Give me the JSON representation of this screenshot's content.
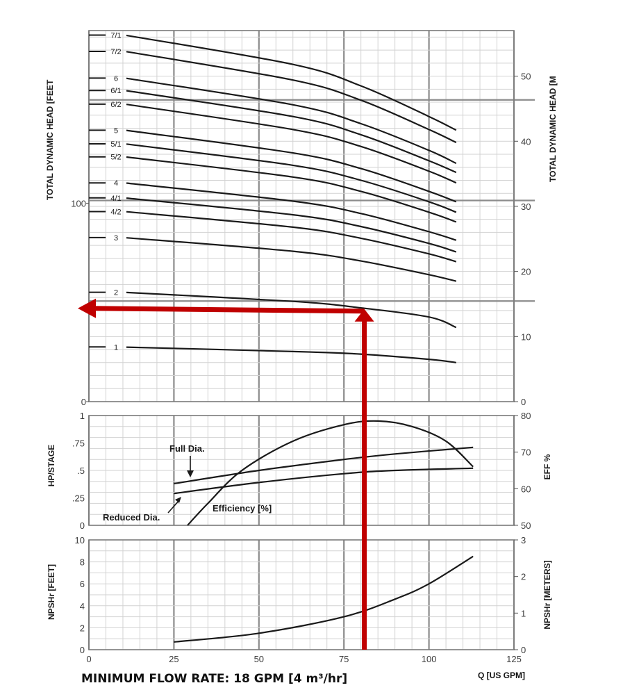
{
  "chart_data": [
    {
      "type": "line",
      "panel": "head",
      "ylabel_left": "TOTAL DYNAMIC HEAD [FEET",
      "ylabel_right": "TOTAL DYNAMIC HEAD [M",
      "left_ticks": [
        {
          "value": 0,
          "label": "0"
        },
        {
          "value": 100,
          "label": "100"
        }
      ],
      "right_ticks": [
        {
          "value": 0,
          "label": "0"
        },
        {
          "value": 10,
          "label": "10"
        },
        {
          "value": 20,
          "label": "20"
        },
        {
          "value": 30,
          "label": "30"
        },
        {
          "value": 40,
          "label": "40"
        },
        {
          "value": 50,
          "label": "50"
        }
      ],
      "xlim": [
        0,
        125
      ],
      "ylim_m": [
        0,
        57
      ],
      "series": [
        {
          "name": "7/1",
          "values": [
            [
              0,
              56.3
            ],
            [
              60,
              51.8
            ],
            [
              80,
              48.5
            ],
            [
              100,
              43.8
            ],
            [
              108,
              41.7
            ]
          ]
        },
        {
          "name": "7/2",
          "values": [
            [
              0,
              53.8
            ],
            [
              60,
              49.4
            ],
            [
              80,
              46.3
            ],
            [
              100,
              41.8
            ],
            [
              108,
              39.8
            ]
          ]
        },
        {
          "name": "6",
          "values": [
            [
              0,
              49.7
            ],
            [
              60,
              45.6
            ],
            [
              80,
              42.7
            ],
            [
              100,
              38.6
            ],
            [
              108,
              36.6
            ]
          ]
        },
        {
          "name": "6/1",
          "values": [
            [
              0,
              47.8
            ],
            [
              60,
              43.8
            ],
            [
              80,
              41.0
            ],
            [
              100,
              37.0
            ],
            [
              108,
              35.2
            ]
          ]
        },
        {
          "name": "6/2",
          "values": [
            [
              0,
              45.7
            ],
            [
              60,
              41.8
            ],
            [
              80,
              39.2
            ],
            [
              100,
              35.4
            ],
            [
              108,
              33.6
            ]
          ]
        },
        {
          "name": "5",
          "values": [
            [
              0,
              41.7
            ],
            [
              60,
              38.2
            ],
            [
              80,
              35.8
            ],
            [
              100,
              32.3
            ],
            [
              108,
              30.7
            ]
          ]
        },
        {
          "name": "5/1",
          "values": [
            [
              0,
              39.6
            ],
            [
              60,
              36.3
            ],
            [
              80,
              34.0
            ],
            [
              100,
              30.7
            ],
            [
              108,
              29.1
            ]
          ]
        },
        {
          "name": "5/2",
          "values": [
            [
              0,
              37.6
            ],
            [
              60,
              34.5
            ],
            [
              80,
              32.3
            ],
            [
              100,
              29.1
            ],
            [
              108,
              27.6
            ]
          ]
        },
        {
          "name": "4",
          "values": [
            [
              0,
              33.6
            ],
            [
              60,
              30.8
            ],
            [
              80,
              28.9
            ],
            [
              100,
              26.1
            ],
            [
              108,
              24.8
            ]
          ]
        },
        {
          "name": "4/1",
          "values": [
            [
              0,
              31.3
            ],
            [
              60,
              28.7
            ],
            [
              80,
              26.9
            ],
            [
              100,
              24.3
            ],
            [
              108,
              23.0
            ]
          ]
        },
        {
          "name": "4/2",
          "values": [
            [
              0,
              29.2
            ],
            [
              60,
              26.8
            ],
            [
              80,
              25.1
            ],
            [
              100,
              22.7
            ],
            [
              108,
              21.5
            ]
          ]
        },
        {
          "name": "3",
          "values": [
            [
              0,
              25.2
            ],
            [
              60,
              23.1
            ],
            [
              80,
              21.6
            ],
            [
              100,
              19.5
            ],
            [
              108,
              18.5
            ]
          ]
        },
        {
          "name": "2",
          "values": [
            [
              0,
              16.8
            ],
            [
              60,
              15.4
            ],
            [
              80,
              14.4
            ],
            [
              100,
              13.0
            ],
            [
              108,
              11.4
            ]
          ]
        },
        {
          "name": "1",
          "values": [
            [
              0,
              8.4
            ],
            [
              60,
              7.7
            ],
            [
              80,
              7.3
            ],
            [
              100,
              6.5
            ],
            [
              108,
              6.0
            ]
          ]
        }
      ]
    },
    {
      "type": "line",
      "panel": "power",
      "ylabel_left": "HP/STAGE",
      "ylabel_right": "EFF %",
      "left_ticks": [
        {
          "value": 0,
          "label": "0"
        },
        {
          "value": 0.25,
          "label": ".25"
        },
        {
          "value": 0.5,
          "label": ".5"
        },
        {
          "value": 0.75,
          "label": ".75"
        },
        {
          "value": 1,
          "label": "1"
        }
      ],
      "right_ticks": [
        {
          "value": 50,
          "label": "50"
        },
        {
          "value": 60,
          "label": "60"
        },
        {
          "value": 70,
          "label": "70"
        },
        {
          "value": 80,
          "label": "80"
        }
      ],
      "xlim": [
        0,
        125
      ],
      "ylim_hp": [
        0,
        1
      ],
      "ylim_eff": [
        50,
        80
      ],
      "series": [
        {
          "name": "Full Dia.",
          "axis": "hp",
          "values": [
            [
              25,
              0.38
            ],
            [
              50,
              0.5
            ],
            [
              75,
              0.6
            ],
            [
              90,
              0.65
            ],
            [
              113,
              0.71
            ]
          ]
        },
        {
          "name": "Reduced Dia.",
          "axis": "hp",
          "values": [
            [
              25,
              0.29
            ],
            [
              50,
              0.39
            ],
            [
              75,
              0.47
            ],
            [
              90,
              0.5
            ],
            [
              113,
              0.52
            ]
          ]
        },
        {
          "name": "Efficiency [%]",
          "axis": "eff",
          "values": [
            [
              29,
              50
            ],
            [
              35,
              56
            ],
            [
              45,
              65
            ],
            [
              60,
              73
            ],
            [
              75,
              77.5
            ],
            [
              85,
              78.5
            ],
            [
              95,
              77
            ],
            [
              105,
              73
            ],
            [
              113,
              66
            ]
          ]
        }
      ]
    },
    {
      "type": "line",
      "panel": "npsh",
      "ylabel_left": "NPSHr [FEET]",
      "ylabel_right": "NPSHr [METERS]",
      "left_ticks": [
        {
          "value": 0,
          "label": "0"
        },
        {
          "value": 2,
          "label": "2"
        },
        {
          "value": 4,
          "label": "4"
        },
        {
          "value": 6,
          "label": "6"
        },
        {
          "value": 8,
          "label": "8"
        },
        {
          "value": 10,
          "label": "10"
        }
      ],
      "right_ticks": [
        {
          "value": 0,
          "label": "0"
        },
        {
          "value": 1,
          "label": "1"
        },
        {
          "value": 2,
          "label": "2"
        },
        {
          "value": 3,
          "label": "3"
        }
      ],
      "x_ticks": [
        {
          "value": 0,
          "label": "0"
        },
        {
          "value": 25,
          "label": "25"
        },
        {
          "value": 50,
          "label": "50"
        },
        {
          "value": 75,
          "label": "75"
        },
        {
          "value": 100,
          "label": "100"
        },
        {
          "value": 125,
          "label": "125"
        }
      ],
      "xlabel": "Q [US GPM]",
      "xlim": [
        0,
        125
      ],
      "ylim": [
        0,
        10
      ],
      "series": [
        {
          "name": "NPSHr",
          "values": [
            [
              25,
              0.7
            ],
            [
              50,
              1.5
            ],
            [
              75,
              3.0
            ],
            [
              90,
              4.6
            ],
            [
              100,
              6.0
            ],
            [
              113,
              8.5
            ]
          ]
        }
      ]
    }
  ],
  "annotations": {
    "full_dia": "Full Dia.",
    "reduced_dia": "Reduced Dia.",
    "efficiency": "Efficiency [%]",
    "minimum_flow": "MINIMUM FLOW RATE: 18 GPM [4 m³/hr]"
  },
  "marker": {
    "color": "#c00000",
    "flow_gpm": 81,
    "head_m": 13.9
  }
}
